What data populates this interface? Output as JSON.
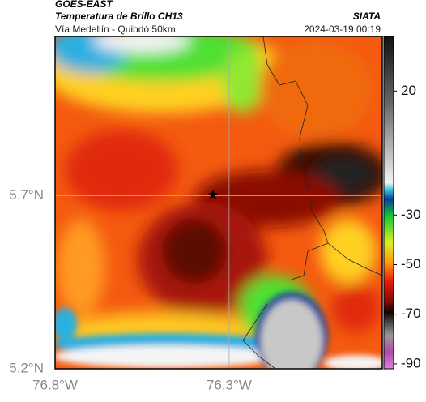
{
  "header": {
    "satellite": "GOES-EAST",
    "product": "Temperatura de Brillo CH13",
    "region": "Vía Medellín - Quibdó 50km",
    "source": "SIATA",
    "timestamp": "2024-03-19 00:19"
  },
  "map": {
    "xlim": [
      -76.8,
      -75.86
    ],
    "ylim": [
      5.2,
      6.16
    ],
    "xticks": [
      {
        "value": -76.8,
        "label": "76.8°W"
      },
      {
        "value": -76.3,
        "label": "76.3°W"
      }
    ],
    "yticks": [
      {
        "value": 5.7,
        "label": "5.7°N"
      },
      {
        "value": 5.2,
        "label": "5.2°N"
      }
    ],
    "grid": true
  },
  "colorbar": {
    "clim": [
      -92,
      42
    ],
    "ticks": [
      20,
      -30,
      -50,
      -70,
      -90
    ]
  }
}
